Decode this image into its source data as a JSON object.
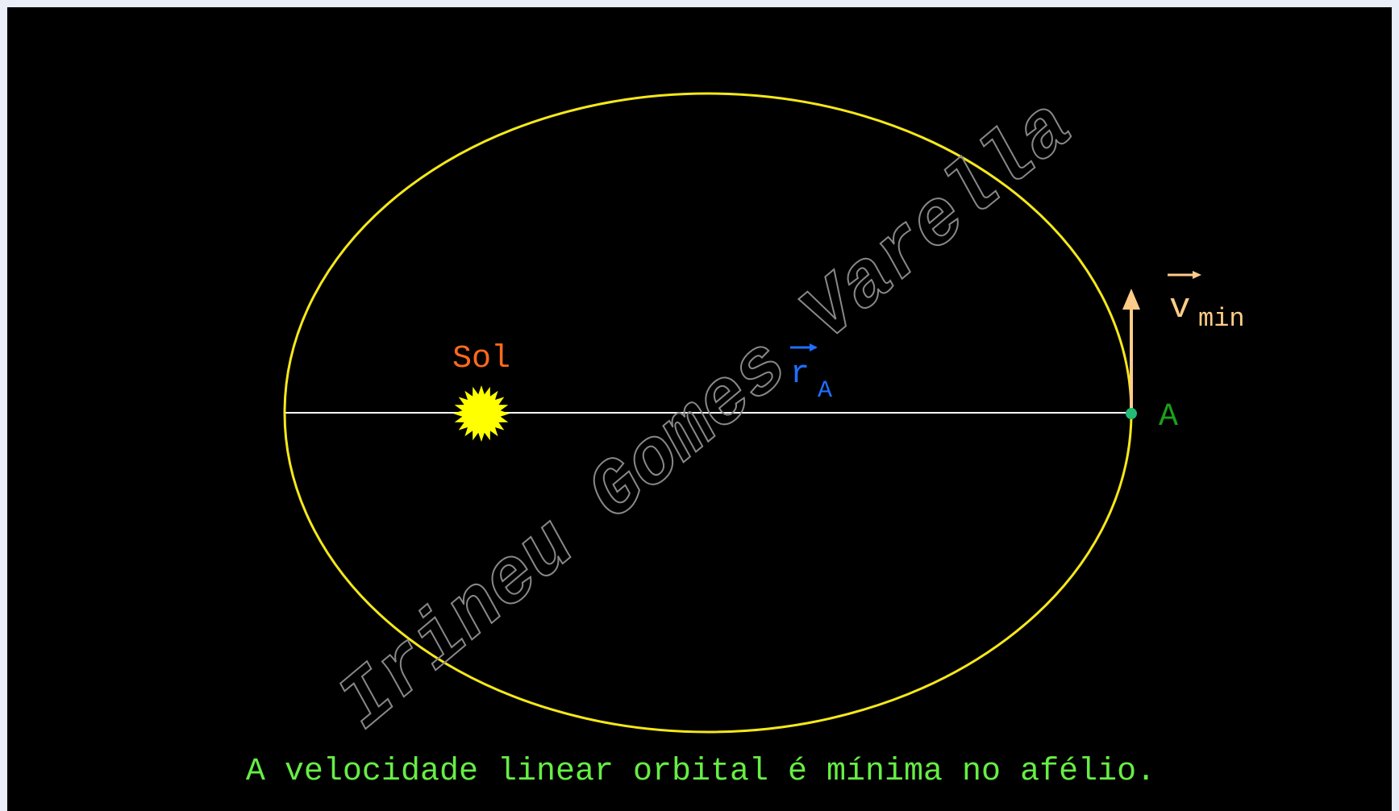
{
  "diagram": {
    "watermark": "Irineu Gomes Varella",
    "sun_label": "Sol",
    "radius_vector": {
      "symbol": "r",
      "subscript": "A"
    },
    "point_label": "A",
    "velocity": {
      "symbol": "v",
      "subscript": "min"
    },
    "caption": "A velocidade linear orbital é mínima no afélio."
  }
}
